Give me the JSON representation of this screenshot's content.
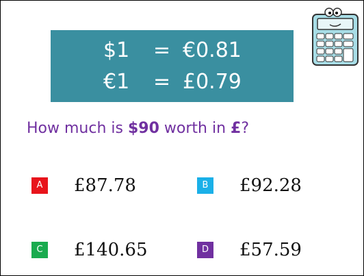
{
  "rates": [
    {
      "left": "$1",
      "sign": "=",
      "right": "€0.81"
    },
    {
      "left": "€1",
      "sign": "=",
      "right": "£0.79"
    }
  ],
  "question": [
    {
      "text": "How much is "
    },
    {
      "text": "$90",
      "bold": true
    },
    {
      "text": " worth in "
    },
    {
      "text": "£",
      "bold": true
    },
    {
      "text": "?"
    }
  ],
  "options": [
    {
      "letter": "A",
      "answer": "£87.78",
      "color": "#e8141b"
    },
    {
      "letter": "B",
      "answer": "£92.28",
      "color": "#1ab0e8"
    },
    {
      "letter": "C",
      "answer": "£140.65",
      "color": "#1aab4f"
    },
    {
      "letter": "D",
      "answer": "£57.59",
      "color": "#7030a0"
    }
  ]
}
